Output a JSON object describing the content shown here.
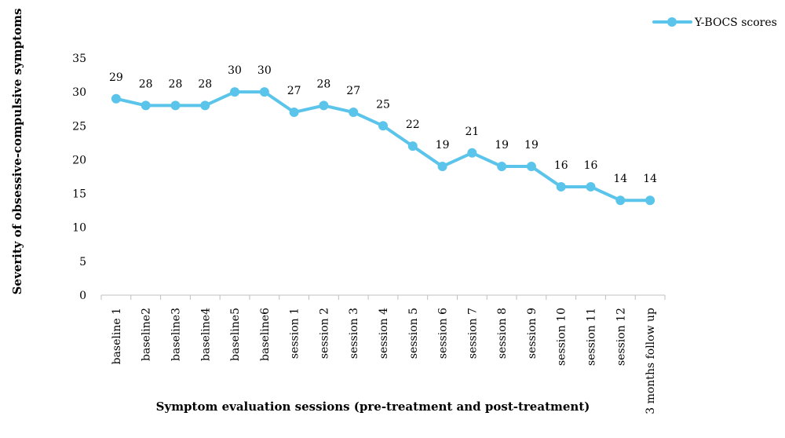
{
  "chart_data": {
    "type": "line",
    "title": "",
    "xlabel": "Symptom evaluation sessions (pre-treatment and post-treatment)",
    "ylabel": "Severity of obsessive-compulsive symptoms",
    "ylim": [
      0,
      35
    ],
    "yticks": [
      0,
      5,
      10,
      15,
      20,
      25,
      30,
      35
    ],
    "grid": false,
    "legend_position": "top-right",
    "categories": [
      "baseline 1",
      "baseline2",
      "baseline3",
      "baseline4",
      "baseline5",
      "baseline6",
      "session 1",
      "session 2",
      "session 3",
      "session 4",
      "session 5",
      "session 6",
      "session 7",
      "session 8",
      "session 9",
      "session 10",
      "session 11",
      "session 12",
      "3 months follow up"
    ],
    "series": [
      {
        "name": "Y-BOCS scores",
        "color": "#5bc4ea",
        "values": [
          29,
          28,
          28,
          28,
          30,
          30,
          27,
          28,
          27,
          25,
          22,
          19,
          21,
          19,
          19,
          16,
          16,
          14,
          14
        ]
      }
    ]
  }
}
